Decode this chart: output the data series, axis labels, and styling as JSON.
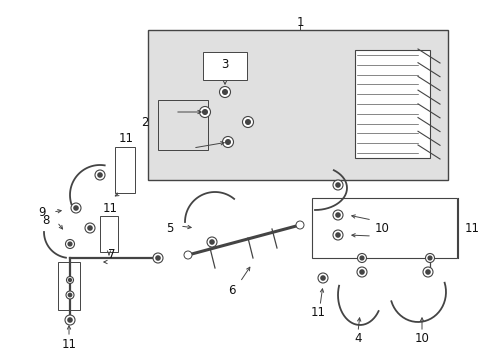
{
  "bg_color": "#ffffff",
  "line_color": "#444444",
  "text_color": "#111111",
  "fs": 8.5,
  "figsize": [
    4.89,
    3.6
  ],
  "dpi": 100
}
